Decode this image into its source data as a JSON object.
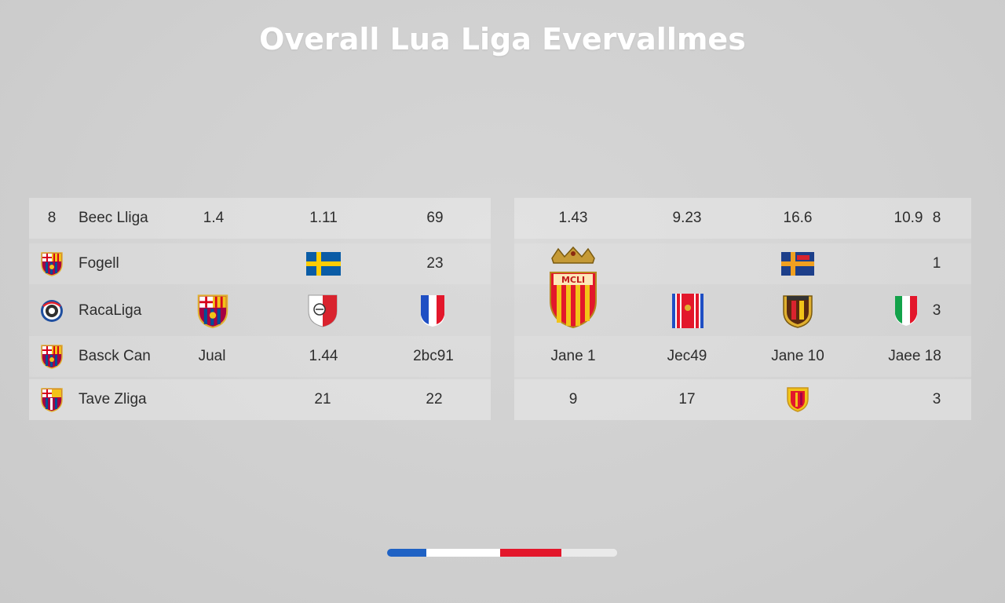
{
  "title": "Overall Lua Liga Evervallmes",
  "left_table": {
    "rows": [
      {
        "num": "8",
        "name": "Beec Lliga",
        "c1": "1.4",
        "c2": "1.11",
        "c3": "69"
      },
      {
        "name": "Fogell",
        "c3": "23"
      },
      {
        "name": "RacaLiga"
      },
      {
        "name": "Basck Can",
        "c1": "Jual",
        "c2": "1.44",
        "c3": "2bc91"
      },
      {
        "name": "Tave Zliga",
        "c2": "21",
        "c3": "22"
      }
    ]
  },
  "right_table": {
    "rows": [
      {
        "c1": "1.43",
        "c2": "9.23",
        "c3": "16.6",
        "c4": "10.9",
        "c5": "8"
      },
      {
        "c5": "1"
      },
      {
        "crest_text": "MCLI",
        "c5": "3"
      },
      {
        "c1": "Jane 1",
        "c2": "Jec49",
        "c3": "Jane 10",
        "c4": "Jaee 18"
      },
      {
        "c1": "9",
        "c2": "17",
        "c5": "3"
      }
    ]
  },
  "icons": {
    "row1_logo": "barcelona-crest-icon",
    "row2_logo": "football-club-badge-icon",
    "row3_logo": "barcelona-crest-icon",
    "row4_logo": "barcelona-crest-icon",
    "flag_sweden": "sweden-flag-icon",
    "flag_france": "france-flag-icon",
    "flag_italy": "italy-flag-icon",
    "royal_crest": "royal-crest-icon"
  },
  "colors": {
    "scroll_blue": "#1f62c4",
    "scroll_red": "#e3172b",
    "scroll_track": "#eaeaea"
  },
  "scroll_position": 0.5
}
